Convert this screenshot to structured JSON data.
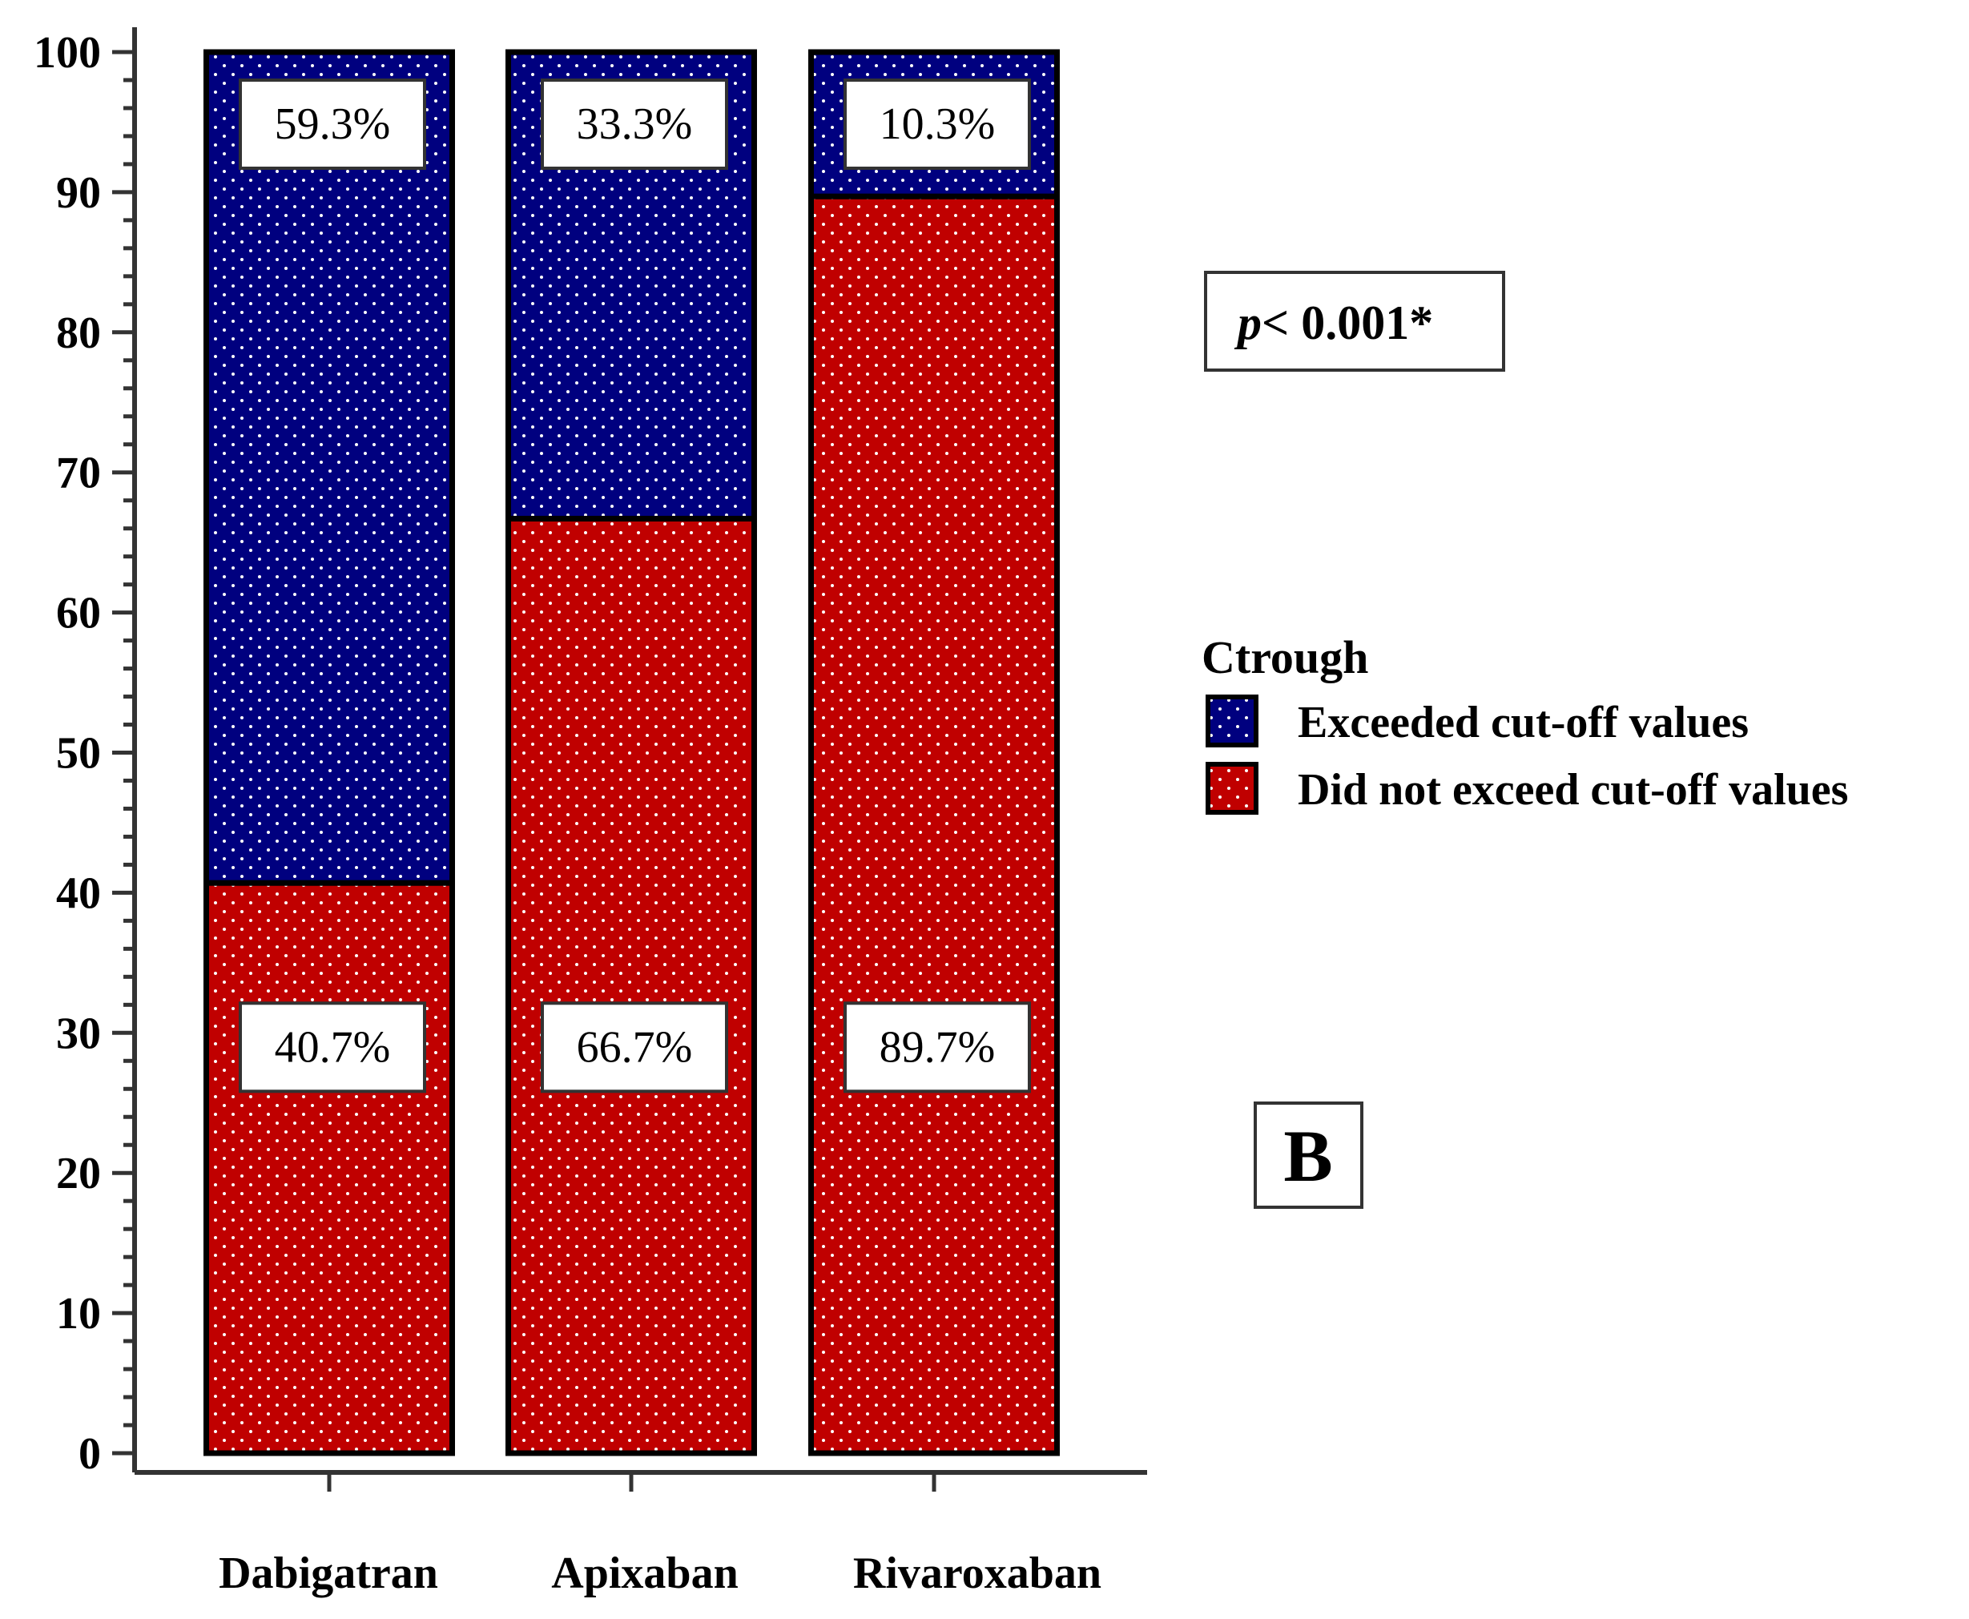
{
  "chart_data": {
    "type": "bar",
    "stacked": true,
    "categories": [
      "Dabigatran",
      "Apixaban",
      "Rivaroxaban"
    ],
    "series": [
      {
        "name": "Did not exceed cut-off values",
        "values": [
          40.7,
          66.7,
          89.7
        ],
        "labels": [
          "40.7%",
          "66.7%",
          "89.7%"
        ],
        "color": "#c00000"
      },
      {
        "name": "Exceeded cut-off values",
        "values": [
          59.3,
          33.3,
          10.3
        ],
        "labels": [
          "59.3%",
          "33.3%",
          "10.3%"
        ],
        "color": "#00007f"
      }
    ],
    "ylim": [
      0,
      100
    ],
    "yticks": [
      0,
      10,
      20,
      30,
      40,
      50,
      60,
      70,
      80,
      90,
      100
    ],
    "legend": {
      "title": "Ctrough",
      "items": [
        "Exceeded cut-off values",
        "Did not exceed cut-off values"
      ],
      "placement": "right"
    },
    "annotation": {
      "p_symbol": "p",
      "p_text": "< 0.001*"
    },
    "panel_label": "B",
    "grid": false
  }
}
